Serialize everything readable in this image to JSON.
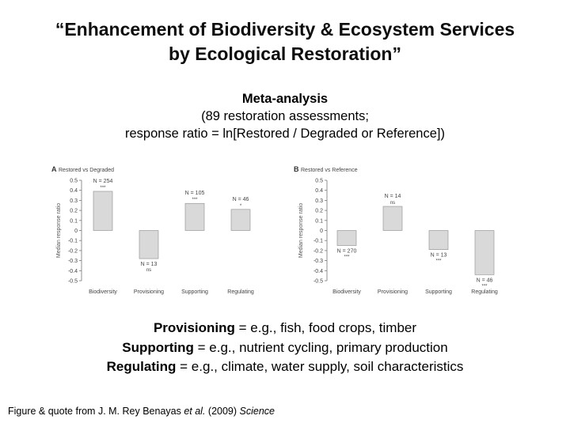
{
  "title": {
    "line1": "“Enhancement of Biodiversity & Ecosystem Services",
    "line2": "by Ecological Restoration”"
  },
  "subtitle": {
    "heading": "Meta-analysis",
    "line2": "(89 restoration assessments;",
    "line3": "response ratio = ln[Restored / Degraded or Reference])"
  },
  "definitions": [
    {
      "term": "Provisioning",
      "text": " = e.g., fish, food crops, timber"
    },
    {
      "term": "Supporting",
      "text": " = e.g., nutrient cycling, primary production"
    },
    {
      "term": "Regulating",
      "text": " = e.g., climate, water supply, soil characteristics"
    }
  ],
  "credit": {
    "prefix": "Figure & quote from J. M. Rey Benayas ",
    "etal": "et al.",
    "middle": " (2009) ",
    "journal": "Science"
  },
  "chart_data": [
    {
      "type": "bar",
      "panel": "A",
      "title": "Restored vs Degraded",
      "ylabel": "Median response ratio",
      "ylim": [
        -0.5,
        0.5
      ],
      "yticks": [
        0.5,
        0.4,
        0.3,
        0.2,
        0.1,
        0,
        -0.1,
        -0.2,
        -0.3,
        -0.4,
        -0.5
      ],
      "categories": [
        "Biodiversity",
        "Provisioning",
        "Supporting",
        "Regulating"
      ],
      "values": [
        0.39,
        -0.28,
        0.27,
        0.21
      ],
      "labels": [
        {
          "n": "N = 254",
          "sig": "***"
        },
        {
          "n": "N = 13",
          "sig": "ns"
        },
        {
          "n": "N = 105",
          "sig": "***"
        },
        {
          "n": "N = 46",
          "sig": "*"
        }
      ]
    },
    {
      "type": "bar",
      "panel": "B",
      "title": "Restored vs Reference",
      "ylabel": "Median response ratio",
      "ylim": [
        -0.5,
        0.5
      ],
      "yticks": [
        0.5,
        0.4,
        0.3,
        0.2,
        0.1,
        0,
        -0.1,
        -0.2,
        -0.3,
        -0.4,
        -0.5
      ],
      "categories": [
        "Biodiversity",
        "Provisioning",
        "Supporting",
        "Regulating"
      ],
      "values": [
        -0.15,
        0.24,
        -0.19,
        -0.44
      ],
      "labels": [
        {
          "n": "N = 270",
          "sig": "***"
        },
        {
          "n": "N = 14",
          "sig": "ns"
        },
        {
          "n": "N = 13",
          "sig": "***"
        },
        {
          "n": "N = 46",
          "sig": "***"
        }
      ]
    }
  ]
}
